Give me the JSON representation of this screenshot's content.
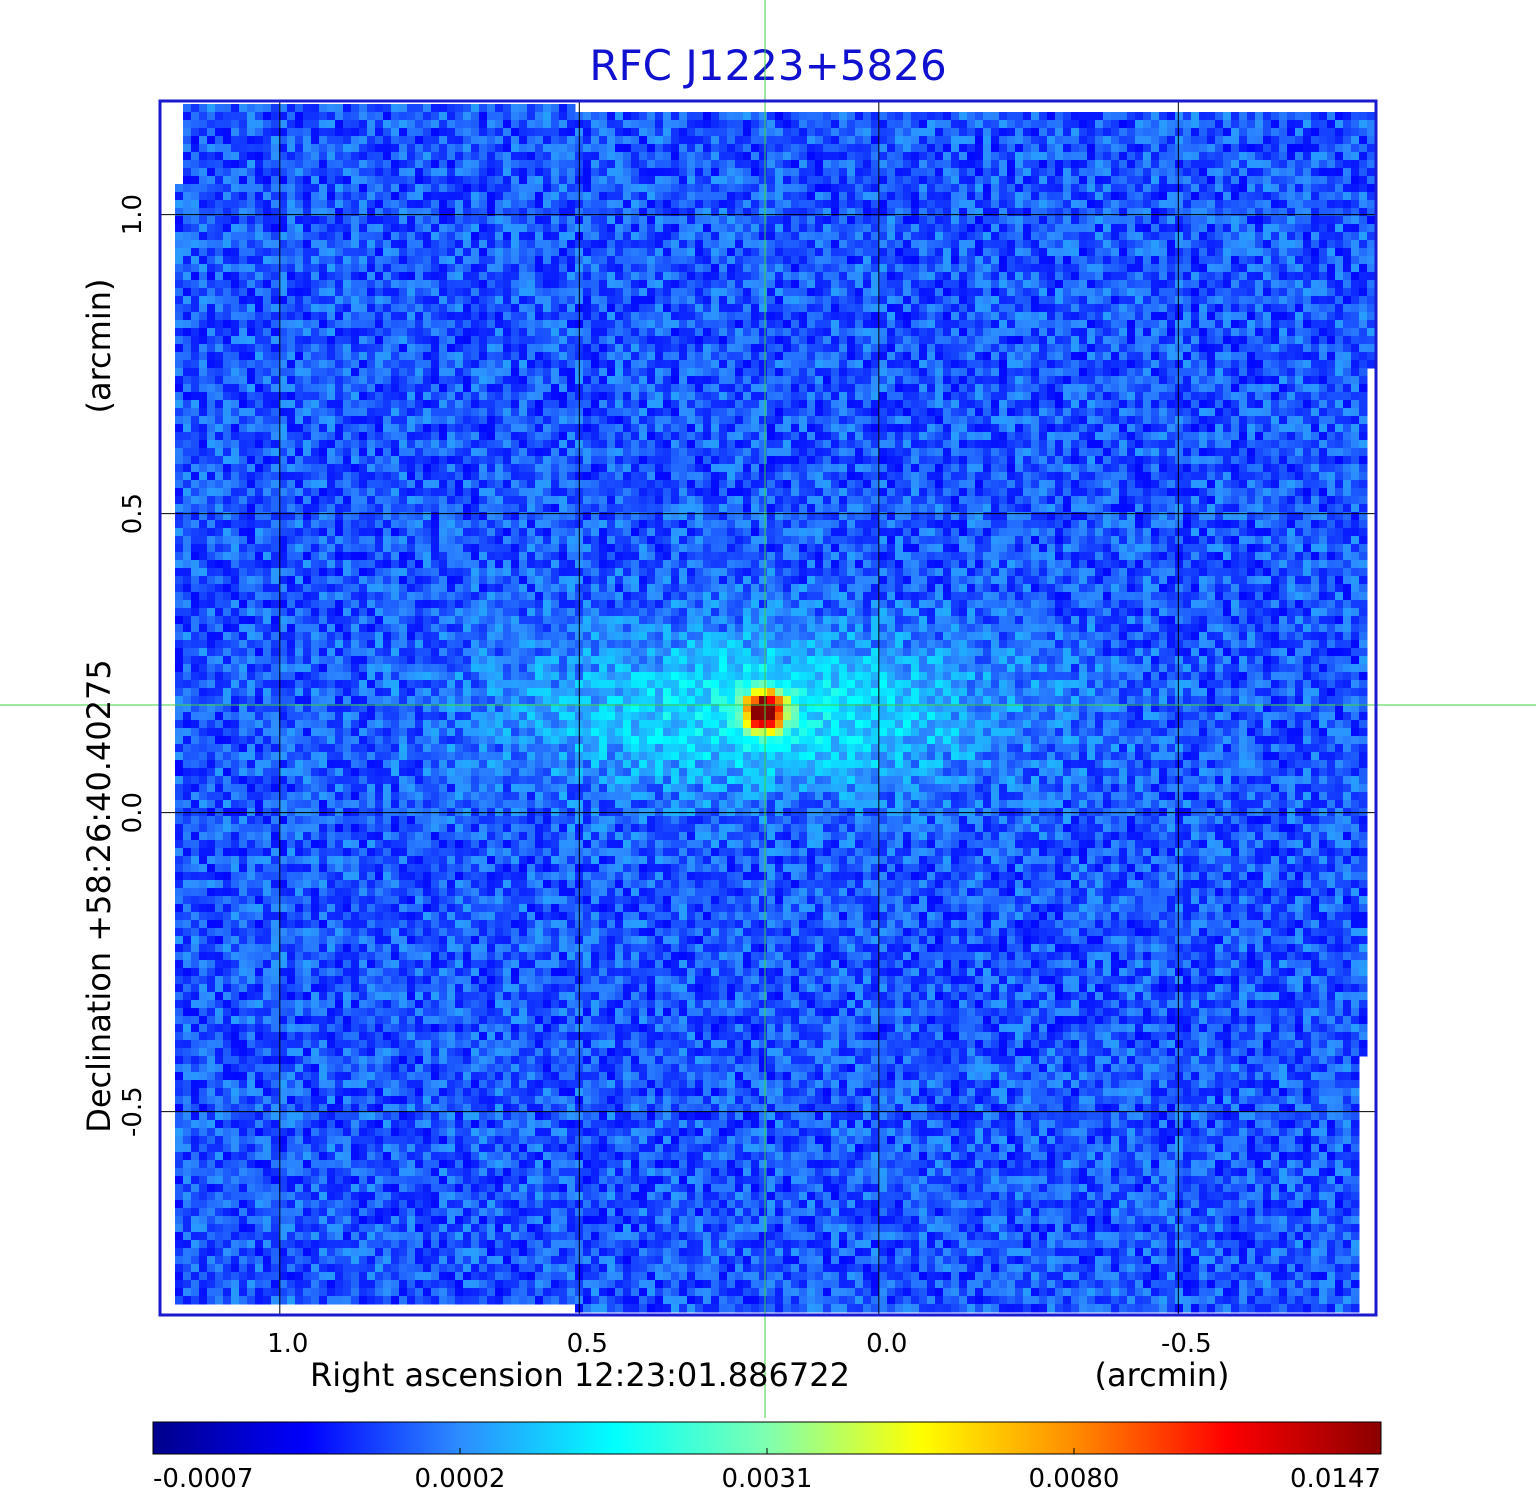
{
  "chart_data": {
    "type": "heatmap",
    "title": "RFC J1223+5826",
    "xlabel": "Right ascension  12:23:01.886722",
    "xunit": "(arcmin)",
    "ylabel": "Declination  +58:26:40.40275",
    "yunit": "(arcmin)",
    "x_range": [
      1.2,
      -0.83
    ],
    "y_range": [
      -0.84,
      1.19
    ],
    "x_ticks": [
      {
        "value": 1.0,
        "label": "1.0"
      },
      {
        "value": 0.5,
        "label": "0.5"
      },
      {
        "value": 0.0,
        "label": "0.0"
      },
      {
        "value": -0.5,
        "label": "-0.5"
      }
    ],
    "y_ticks": [
      {
        "value": 1.0,
        "label": "1.0"
      },
      {
        "value": 0.5,
        "label": "0.5"
      },
      {
        "value": 0.0,
        "label": "0.0"
      },
      {
        "value": -0.5,
        "label": "-0.5"
      }
    ],
    "grid": true,
    "crosshair": {
      "x": 0.19,
      "y": 0.18
    },
    "peak": {
      "x": 0.19,
      "y": 0.17,
      "value": 0.0147
    },
    "colorbar": {
      "position": "bottom",
      "labels": [
        "-0.0007",
        "0.0002",
        "0.0031",
        "0.0080",
        "0.0147"
      ],
      "stops": [
        "#00008b",
        "#0000ff",
        "#2d8cff",
        "#00ffff",
        "#7fffb0",
        "#ffff00",
        "#ff8c00",
        "#ff0000",
        "#8b0000"
      ]
    },
    "colors": {
      "title": "#1010d0",
      "frame": "#1a1ad0",
      "crosshair": "#40d040",
      "grid": "#000000"
    }
  }
}
